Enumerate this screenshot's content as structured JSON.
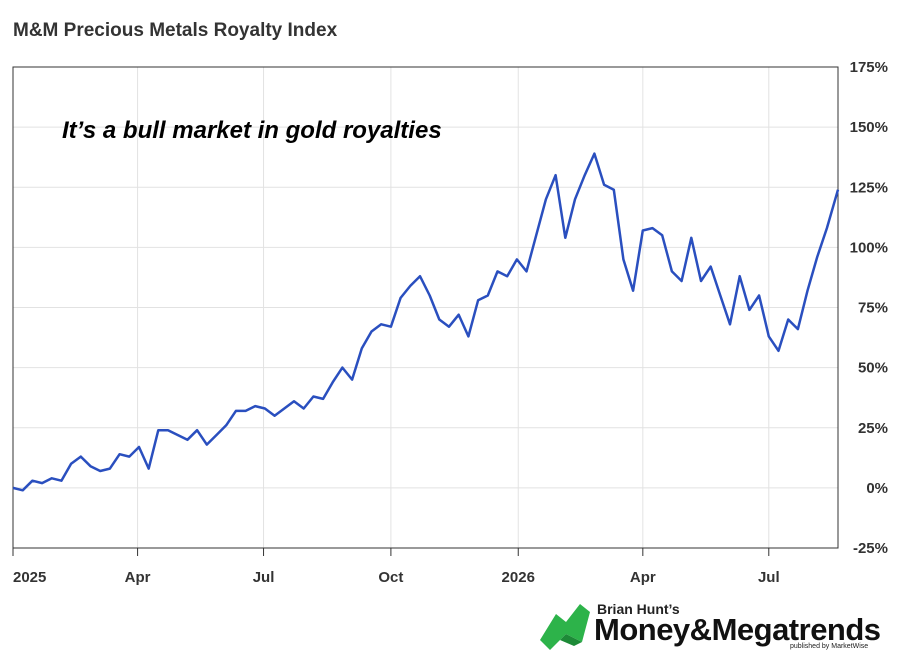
{
  "chart_data": {
    "type": "line",
    "title": "M&M Precious Metals Royalty Index",
    "annotation": "It’s a bull market in gold royalties",
    "xlabel": "",
    "ylabel": "",
    "x_ticks": [
      "2025",
      "Apr",
      "Jul",
      "Oct",
      "2026",
      "Apr",
      "Jul"
    ],
    "y_ticks": [
      "175%",
      "150%",
      "125%",
      "100%",
      "75%",
      "50%",
      "25%",
      "0%",
      "-25%"
    ],
    "ylim": [
      -25,
      175
    ],
    "xlim": [
      "2025-01-01",
      "2026-08-20"
    ],
    "grid": true,
    "line_color": "#2a4fbf",
    "series": [
      {
        "name": "",
        "points": [
          [
            "2025-01-01",
            0
          ],
          [
            "2025-01-08",
            -1
          ],
          [
            "2025-01-15",
            3
          ],
          [
            "2025-01-22",
            2
          ],
          [
            "2025-01-29",
            4
          ],
          [
            "2025-02-05",
            3
          ],
          [
            "2025-02-12",
            10
          ],
          [
            "2025-02-19",
            13
          ],
          [
            "2025-02-26",
            9
          ],
          [
            "2025-03-05",
            7
          ],
          [
            "2025-03-12",
            8
          ],
          [
            "2025-03-19",
            14
          ],
          [
            "2025-03-26",
            13
          ],
          [
            "2025-04-02",
            17
          ],
          [
            "2025-04-09",
            8
          ],
          [
            "2025-04-16",
            24
          ],
          [
            "2025-04-23",
            24
          ],
          [
            "2025-04-30",
            22
          ],
          [
            "2025-05-07",
            20
          ],
          [
            "2025-05-14",
            24
          ],
          [
            "2025-05-21",
            18
          ],
          [
            "2025-05-28",
            22
          ],
          [
            "2025-06-04",
            26
          ],
          [
            "2025-06-11",
            32
          ],
          [
            "2025-06-18",
            32
          ],
          [
            "2025-06-25",
            34
          ],
          [
            "2025-07-02",
            33
          ],
          [
            "2025-07-09",
            30
          ],
          [
            "2025-07-16",
            33
          ],
          [
            "2025-07-23",
            36
          ],
          [
            "2025-07-30",
            33
          ],
          [
            "2025-08-06",
            38
          ],
          [
            "2025-08-13",
            37
          ],
          [
            "2025-08-20",
            44
          ],
          [
            "2025-08-27",
            50
          ],
          [
            "2025-09-03",
            45
          ],
          [
            "2025-09-10",
            58
          ],
          [
            "2025-09-17",
            65
          ],
          [
            "2025-09-24",
            68
          ],
          [
            "2025-10-01",
            67
          ],
          [
            "2025-10-08",
            79
          ],
          [
            "2025-10-15",
            84
          ],
          [
            "2025-10-22",
            88
          ],
          [
            "2025-10-29",
            80
          ],
          [
            "2025-11-05",
            70
          ],
          [
            "2025-11-12",
            67
          ],
          [
            "2025-11-19",
            72
          ],
          [
            "2025-11-26",
            63
          ],
          [
            "2025-12-03",
            78
          ],
          [
            "2025-12-10",
            80
          ],
          [
            "2025-12-17",
            90
          ],
          [
            "2025-12-24",
            88
          ],
          [
            "2025-12-31",
            95
          ],
          [
            "2026-01-07",
            90
          ],
          [
            "2026-01-14",
            105
          ],
          [
            "2026-01-21",
            120
          ],
          [
            "2026-01-28",
            130
          ],
          [
            "2026-02-04",
            104
          ],
          [
            "2026-02-11",
            120
          ],
          [
            "2026-02-18",
            130
          ],
          [
            "2026-02-25",
            139
          ],
          [
            "2026-03-04",
            126
          ],
          [
            "2026-03-11",
            124
          ],
          [
            "2026-03-18",
            95
          ],
          [
            "2026-03-25",
            82
          ],
          [
            "2026-04-01",
            107
          ],
          [
            "2026-04-08",
            108
          ],
          [
            "2026-04-15",
            105
          ],
          [
            "2026-04-22",
            90
          ],
          [
            "2026-04-29",
            86
          ],
          [
            "2026-05-06",
            104
          ],
          [
            "2026-05-13",
            86
          ],
          [
            "2026-05-20",
            92
          ],
          [
            "2026-05-27",
            80
          ],
          [
            "2026-06-03",
            68
          ],
          [
            "2026-06-10",
            88
          ],
          [
            "2026-06-17",
            74
          ],
          [
            "2026-06-24",
            80
          ],
          [
            "2026-07-01",
            63
          ],
          [
            "2026-07-08",
            57
          ],
          [
            "2026-07-15",
            70
          ],
          [
            "2026-07-22",
            66
          ],
          [
            "2026-07-29",
            82
          ],
          [
            "2026-08-05",
            96
          ],
          [
            "2026-08-12",
            108
          ],
          [
            "2026-08-20",
            124
          ]
        ]
      }
    ]
  },
  "branding": {
    "byline": "Brian Hunt’s",
    "name": "Money&Megatrends",
    "sub": "published by MarketWise",
    "logo_color": "#2db34a"
  }
}
